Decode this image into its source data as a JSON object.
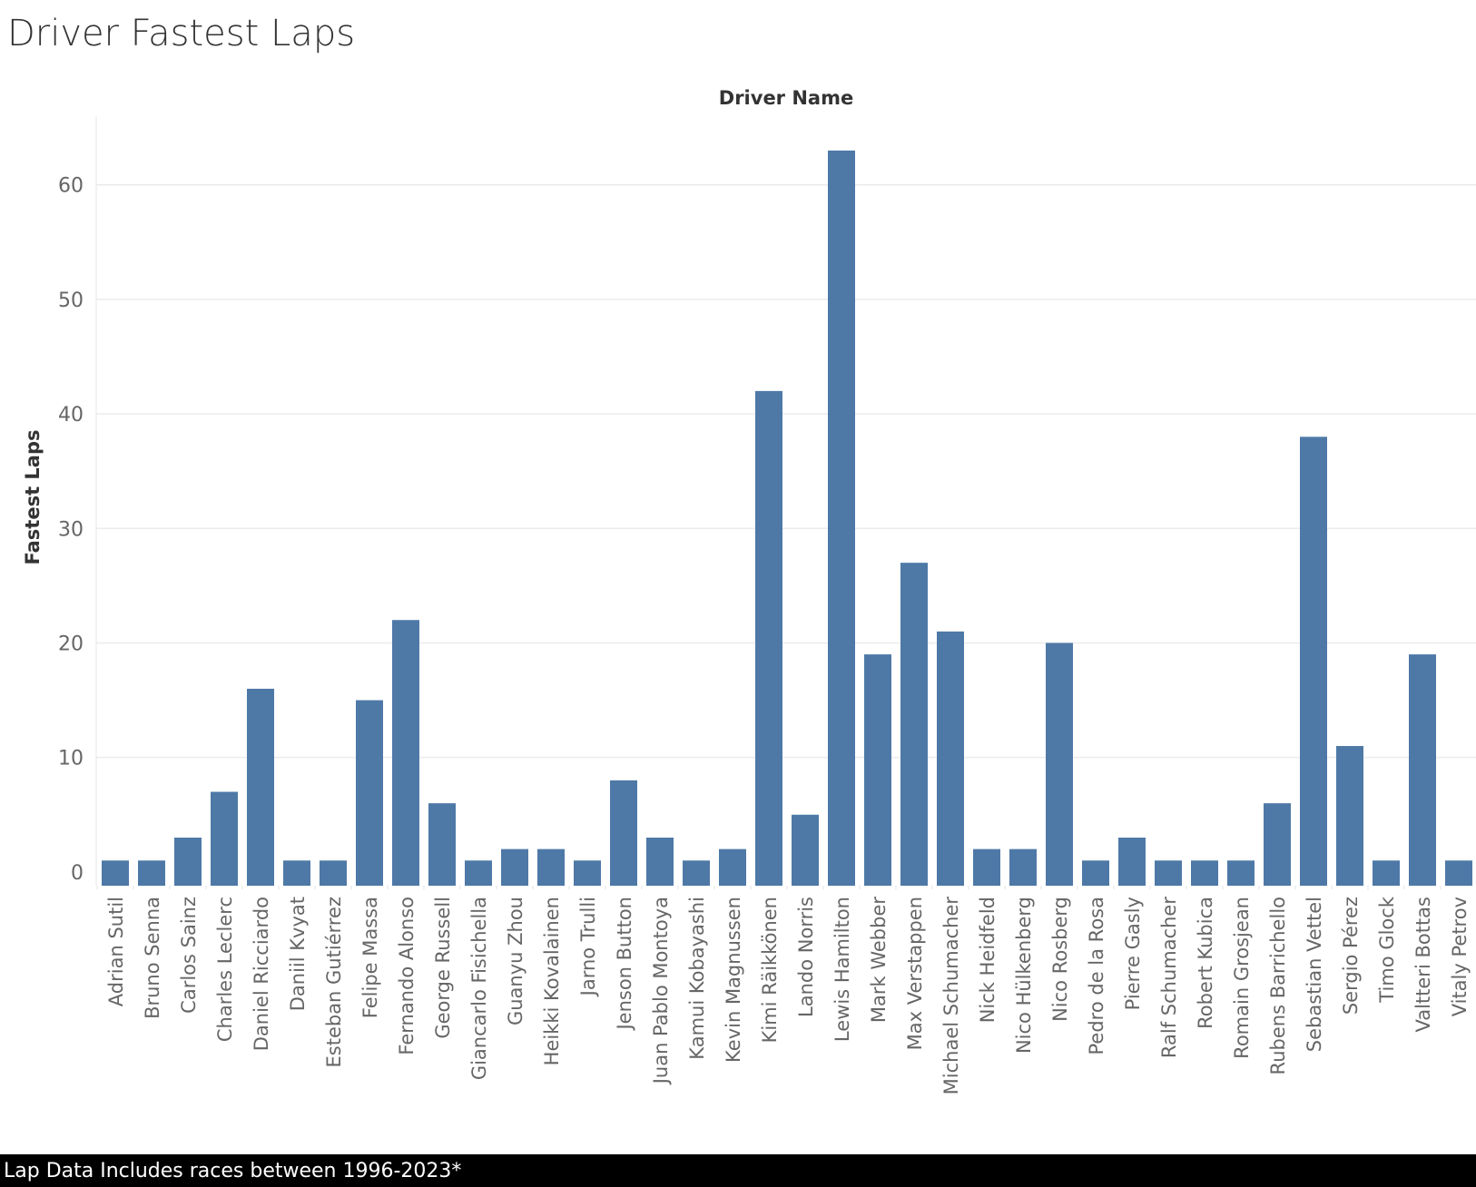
{
  "title": "Driver Fastest Laps",
  "footer_note": "Lap Data Includes races between 1996-2023*",
  "colors": {
    "bar": "#4e79a7",
    "grid": "#ebebeb",
    "axis_text": "#666666",
    "label_text": "#333333"
  },
  "chart_data": {
    "type": "bar",
    "xlabel": "Driver Name",
    "ylabel": "Fastest Laps",
    "ylim": [
      -1.2,
      66
    ],
    "yticks": [
      0,
      10,
      20,
      30,
      40,
      50,
      60
    ],
    "grid": true,
    "categories": [
      "Adrian Sutil",
      "Bruno Senna",
      "Carlos Sainz",
      "Charles Leclerc",
      "Daniel Ricciardo",
      "Daniil Kvyat",
      "Esteban Gutiérrez",
      "Felipe Massa",
      "Fernando Alonso",
      "George Russell",
      "Giancarlo Fisichella",
      "Guanyu Zhou",
      "Heikki Kovalainen",
      "Jarno Trulli",
      "Jenson Button",
      "Juan Pablo Montoya",
      "Kamui Kobayashi",
      "Kevin Magnussen",
      "Kimi Räikkönen",
      "Lando Norris",
      "Lewis Hamilton",
      "Mark Webber",
      "Max Verstappen",
      "Michael Schumacher",
      "Nick Heidfeld",
      "Nico Hülkenberg",
      "Nico Rosberg",
      "Pedro de la Rosa",
      "Pierre Gasly",
      "Ralf Schumacher",
      "Robert Kubica",
      "Romain Grosjean",
      "Rubens Barrichello",
      "Sebastian Vettel",
      "Sergio Pérez",
      "Timo Glock",
      "Valtteri Bottas",
      "Vitaly Petrov"
    ],
    "values": [
      1,
      1,
      3,
      7,
      16,
      1,
      1,
      15,
      22,
      6,
      1,
      2,
      2,
      1,
      8,
      3,
      1,
      2,
      42,
      5,
      63,
      19,
      27,
      21,
      2,
      2,
      20,
      1,
      3,
      1,
      1,
      1,
      6,
      38,
      11,
      1,
      19,
      1
    ]
  }
}
